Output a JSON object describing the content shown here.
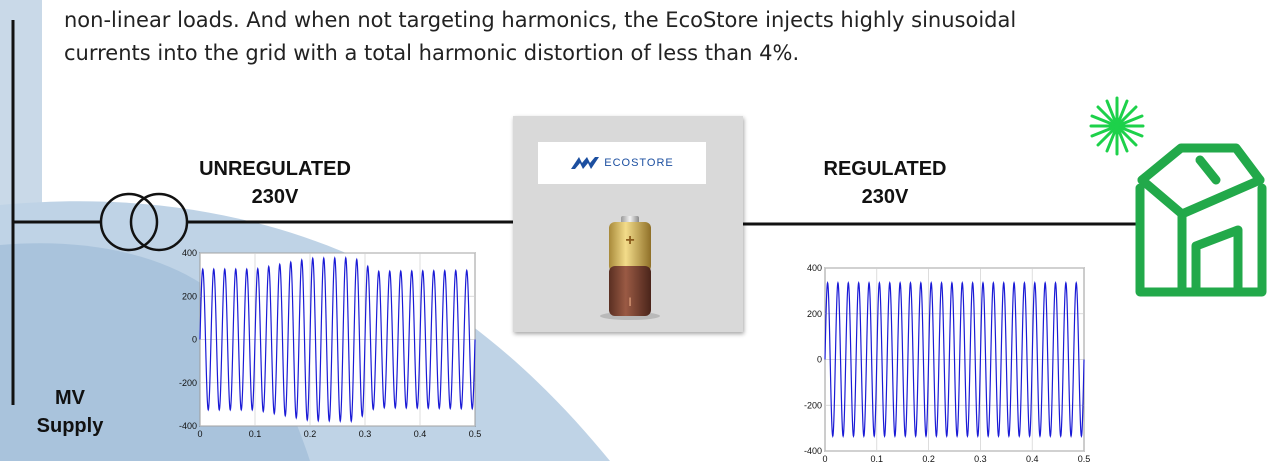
{
  "intro_text_lines": [
    "non-linear loads.  And when not targeting harmonics, the EcoStore injects highly sinusoidal",
    "currents into the grid with a total harmonic distortion of less than 4%."
  ],
  "labels": {
    "unregulated": [
      "UNREGULATED",
      "230V"
    ],
    "regulated": [
      "REGULATED",
      "230V"
    ],
    "mv_supply": [
      "MV",
      "Supply"
    ]
  },
  "device": {
    "logo_text": "ECOSTORE",
    "battery_plus": "+",
    "battery_minus": "I"
  },
  "icons": {
    "transformer": "transformer-icon",
    "battery": "battery-icon",
    "house": "house-icon",
    "sun": "sun-burst-icon"
  },
  "colors": {
    "waveform": "#1a1ad6",
    "house": "#22a94a",
    "sun": "#1dd14a",
    "background_shape": "#bfd3e6",
    "logo_blue": "#1c4fa0"
  },
  "chart_data": [
    {
      "type": "line",
      "name": "unregulated-waveform",
      "xlim": [
        0,
        0.5
      ],
      "ylim": [
        -400,
        400
      ],
      "xticks": [
        "0",
        "0.1",
        "0.2",
        "0.3",
        "0.4",
        "0.5"
      ],
      "yticks": [
        "400",
        "200",
        "0",
        "-200",
        "-400"
      ],
      "grid": true,
      "cycles": 25,
      "envelope": {
        "t": [
          0,
          0.1,
          0.2,
          0.28,
          0.32,
          0.5
        ],
        "amp": [
          325,
          325,
          375,
          378,
          315,
          320
        ]
      }
    },
    {
      "type": "line",
      "name": "regulated-waveform",
      "xlim": [
        0,
        0.5
      ],
      "ylim": [
        -400,
        400
      ],
      "xticks": [
        "0",
        "0.1",
        "0.2",
        "0.3",
        "0.4",
        "0.5"
      ],
      "yticks": [
        "400",
        "200",
        "0",
        "-200",
        "-400"
      ],
      "grid": true,
      "cycles": 25,
      "envelope": {
        "t": [
          0,
          0.5
        ],
        "amp": [
          335,
          335
        ]
      }
    }
  ]
}
